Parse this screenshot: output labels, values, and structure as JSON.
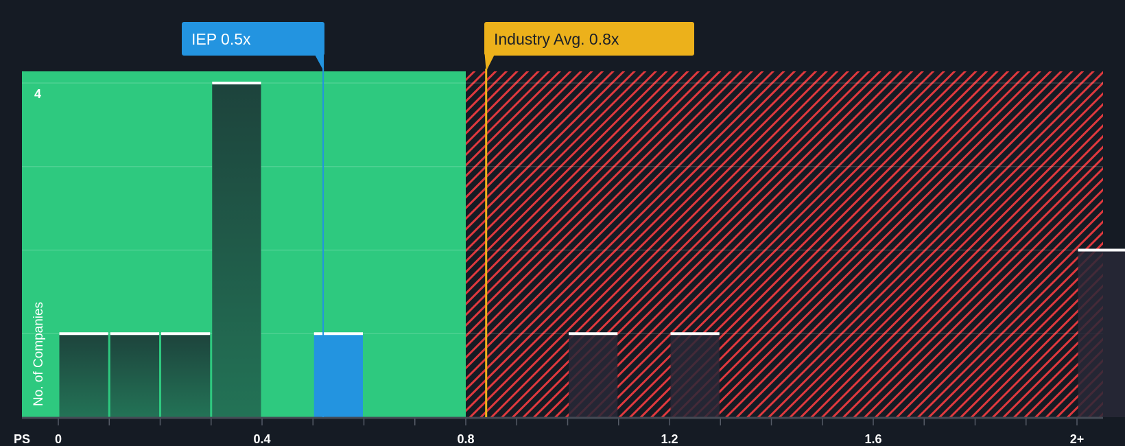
{
  "chart_data": {
    "type": "bar",
    "xlabel": "PS",
    "ylabel": "No. of Companies",
    "x_ticks": [
      "0",
      "0.4",
      "0.8",
      "1.2",
      "1.6",
      "2+"
    ],
    "y_ticks": [
      "4"
    ],
    "ylim": [
      0,
      4
    ],
    "xlim": [
      0,
      2.1
    ],
    "bins": [
      {
        "start": 0.0,
        "end": 0.1,
        "count": 1,
        "group": "below"
      },
      {
        "start": 0.1,
        "end": 0.2,
        "count": 1,
        "group": "below"
      },
      {
        "start": 0.2,
        "end": 0.3,
        "count": 1,
        "group": "below"
      },
      {
        "start": 0.3,
        "end": 0.4,
        "count": 4,
        "group": "below"
      },
      {
        "start": 0.5,
        "end": 0.6,
        "count": 1,
        "group": "company"
      },
      {
        "start": 1.0,
        "end": 1.1,
        "count": 1,
        "group": "above"
      },
      {
        "start": 1.2,
        "end": 1.3,
        "count": 1,
        "group": "above"
      },
      {
        "start": 2.0,
        "end": 2.1,
        "count": 2,
        "group": "above"
      }
    ],
    "company": {
      "label": "IEP 0.5x",
      "value": 0.52,
      "color": "#2394e0"
    },
    "industry": {
      "label": "Industry Avg. 0.8x",
      "value": 0.84,
      "color": "#ecb11b"
    },
    "fair_zone_end": 0.8,
    "colors": {
      "green": "#2ec97f",
      "red": "#e0393e",
      "background": "#151b24"
    }
  }
}
